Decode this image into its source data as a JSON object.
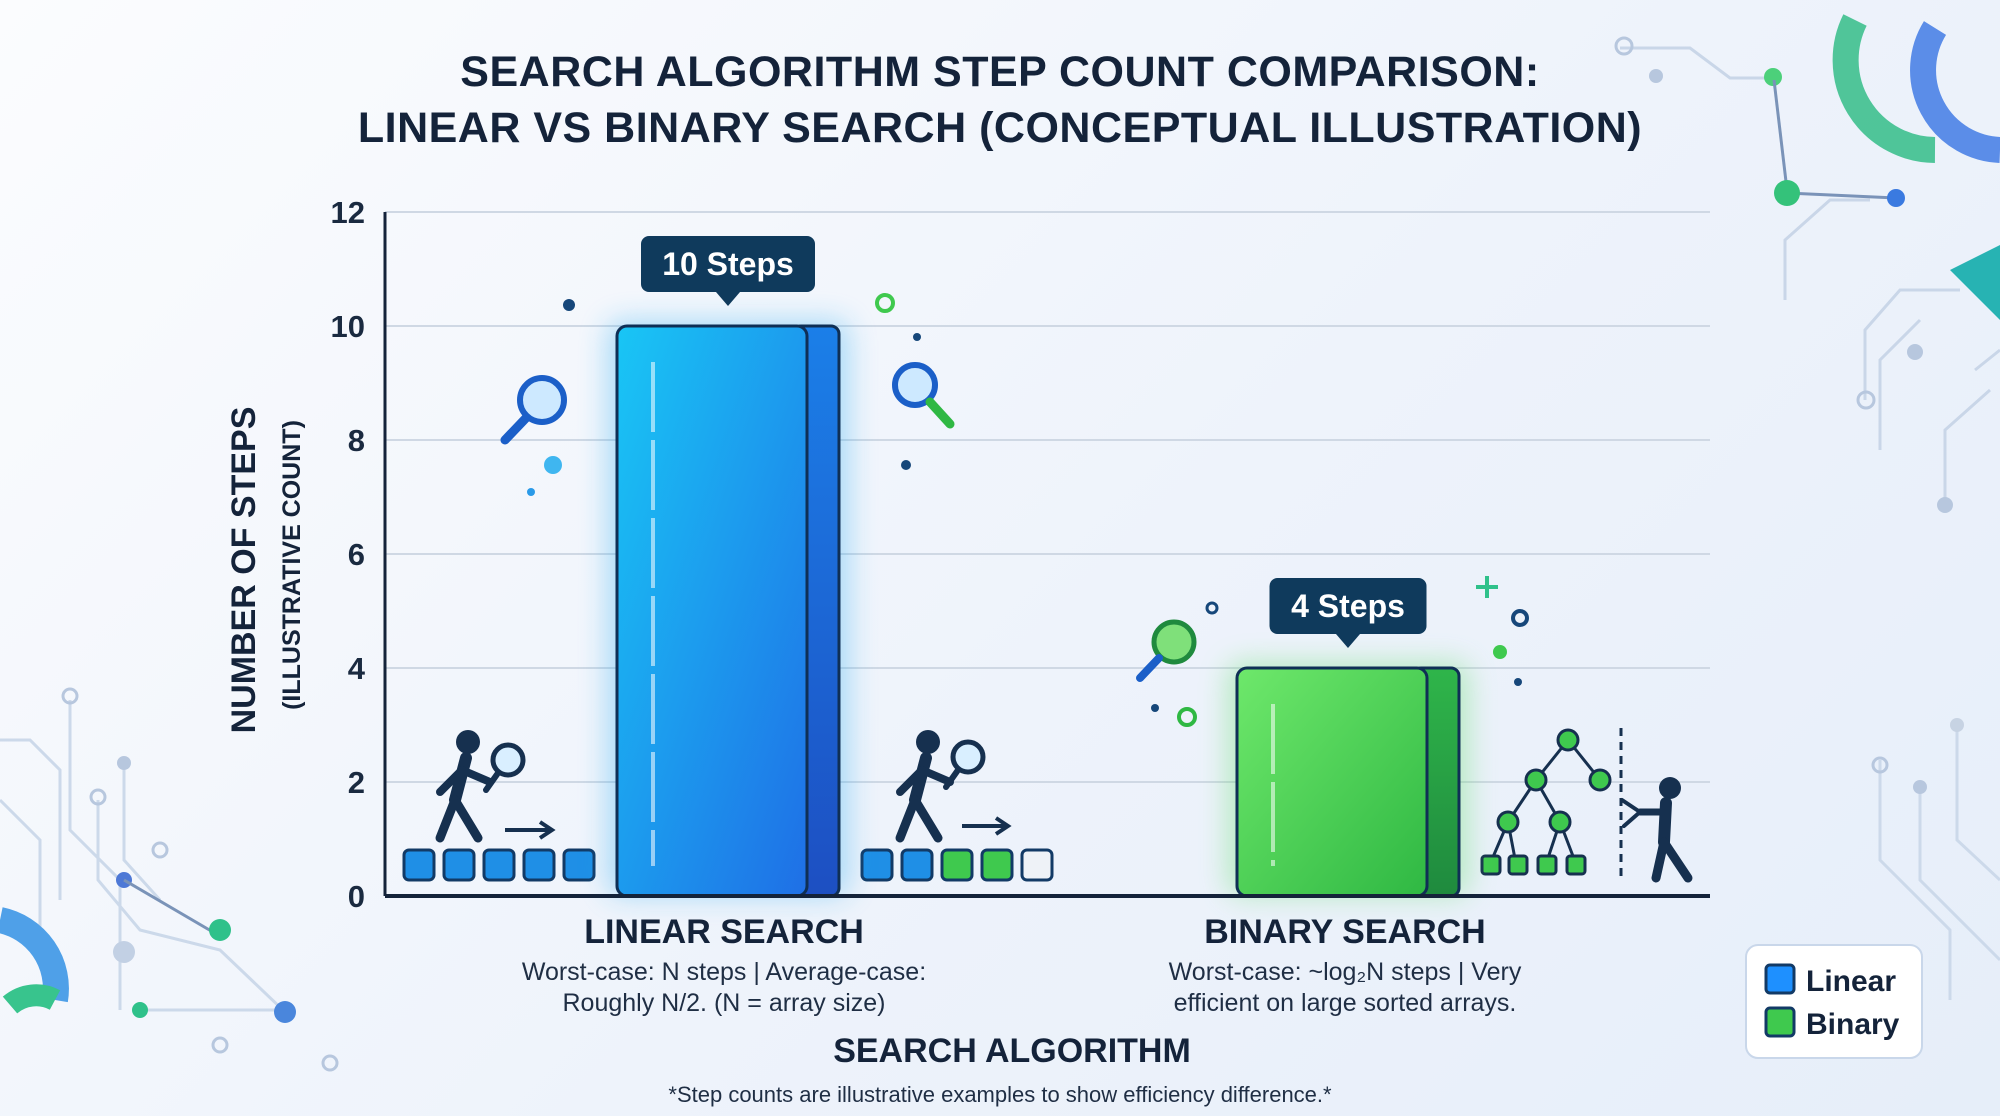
{
  "chart_data": {
    "type": "bar",
    "title_lines": [
      "SEARCH ALGORITHM STEP COUNT COMPARISON:",
      "LINEAR VS BINARY SEARCH (CONCEPTUAL ILLUSTRATION)"
    ],
    "categories": [
      "LINEAR SEARCH",
      "BINARY SEARCH"
    ],
    "values": [
      10,
      4
    ],
    "value_labels": [
      "10 Steps",
      "4 Steps"
    ],
    "descriptions": [
      [
        "Worst-case: N steps | Average-case:",
        "Roughly N/2.  (N = array size)"
      ],
      [
        "Worst-case: ~log₂N steps | Very",
        "efficient on large sorted arrays."
      ]
    ],
    "xlabel": "SEARCH ALGORITHM",
    "ylabel": "NUMBER OF STEPS",
    "ylabel_sub": "(ILLUSTRATIVE COUNT)",
    "ylim": [
      0,
      12
    ],
    "yticks": [
      0,
      2,
      4,
      6,
      8,
      10,
      12
    ],
    "grid": true,
    "legend": {
      "position": "bottom-right",
      "entries": [
        {
          "name": "Linear",
          "color": "#1e90ff"
        },
        {
          "name": "Binary",
          "color": "#3fc94e"
        }
      ]
    },
    "colors": [
      "#1e90ff",
      "#3fc94e"
    ],
    "footnote": "*Step counts are illustrative examples to show efficiency difference.*"
  }
}
